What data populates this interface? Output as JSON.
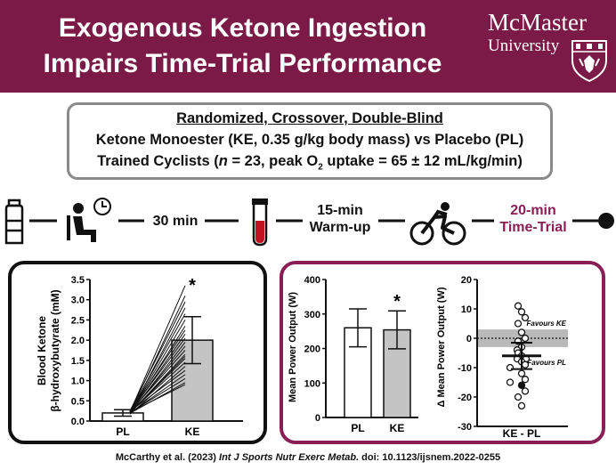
{
  "header": {
    "title_line1": "Exogenous Ketone Ingestion",
    "title_line2": "Impairs Time-Trial Performance",
    "logo_name": "McMaster",
    "logo_sub": "University",
    "background": "#7b1a46"
  },
  "design": {
    "line1": "Randomized, Crossover, Double-Blind",
    "line2": "Ketone Monoester (KE, 0.35 g/kg body mass) vs Placebo (PL)",
    "line3_a": "Trained Cyclists (",
    "line3_n": "n",
    "line3_b": " = 23, peak O",
    "line3_sub": "2",
    "line3_c": " uptake = 65 ± 12 mL/kg/min)"
  },
  "timeline": {
    "step_wait": "30 min",
    "step_warmup_1": "15-min",
    "step_warmup_2": "Warm-up",
    "step_tt_1": "20-min",
    "step_tt_2": "Time-Trial",
    "accent": "#8a1f55",
    "icons": [
      "bottle-icon",
      "seated-person-clock-icon",
      "blood-tube-icon",
      "cyclist-icon"
    ]
  },
  "chart_data": [
    {
      "type": "bar",
      "ylabel_line1": "Blood Ketone",
      "ylabel_line2": "β-hydroxybutyrate (mM)",
      "categories": [
        "PL",
        "KE"
      ],
      "values": [
        0.2,
        2.0
      ],
      "errors": [
        0.08,
        0.58
      ],
      "ylim": [
        0,
        3.5
      ],
      "yticks": [
        "0.0",
        "0.5",
        "1.0",
        "1.5",
        "2.0",
        "2.5",
        "3.0",
        "3.5"
      ],
      "significance": "*",
      "individual_pairs": [
        [
          0.22,
          3.35
        ],
        [
          0.2,
          3.1
        ],
        [
          0.25,
          2.95
        ],
        [
          0.18,
          2.8
        ],
        [
          0.23,
          2.65
        ],
        [
          0.21,
          2.5
        ],
        [
          0.19,
          2.35
        ],
        [
          0.24,
          2.25
        ],
        [
          0.2,
          2.15
        ],
        [
          0.22,
          2.05
        ],
        [
          0.18,
          1.95
        ],
        [
          0.21,
          1.85
        ],
        [
          0.23,
          1.75
        ],
        [
          0.19,
          1.65
        ],
        [
          0.2,
          1.55
        ],
        [
          0.22,
          1.45
        ],
        [
          0.17,
          1.35
        ],
        [
          0.24,
          1.25
        ],
        [
          0.2,
          1.15
        ],
        [
          0.21,
          1.05
        ],
        [
          0.19,
          0.95
        ],
        [
          0.22,
          0.9
        ],
        [
          0.2,
          1.6
        ]
      ]
    },
    {
      "type": "bar",
      "ylabel": "Mean Power Output (W)",
      "categories": [
        "PL",
        "KE"
      ],
      "values": [
        260,
        254
      ],
      "errors": [
        55,
        55
      ],
      "ylim": [
        0,
        400
      ],
      "yticks": [
        "0",
        "100",
        "200",
        "300",
        "400"
      ],
      "significance": "*"
    },
    {
      "type": "scatter",
      "ylabel": "Δ Mean Power Output (W)",
      "xlabel": "KE - PL",
      "ylim": [
        -30,
        20
      ],
      "yticks": [
        "-30",
        "-20",
        "-10",
        "0",
        "10",
        "20"
      ],
      "mean": -6,
      "ci": [
        -10.5,
        -1.5
      ],
      "band": [
        -3,
        3
      ],
      "favours_ke": "Favours KE",
      "favours_pl": "Favours PL",
      "points": [
        11,
        9,
        7,
        5,
        2,
        0,
        -1,
        -3,
        -4,
        -5,
        -6,
        -7,
        -7,
        -8,
        -9,
        -10,
        -12,
        -14,
        -15,
        -16,
        -18,
        -20,
        -23
      ],
      "filled_index": 19
    }
  ],
  "citation": {
    "authors": "McCarthy et al. (2023) ",
    "journal": "Int J Sports Nutr Exerc Metab.",
    "doi": " doi: 10.1123/ijsnem.2022-0255"
  }
}
